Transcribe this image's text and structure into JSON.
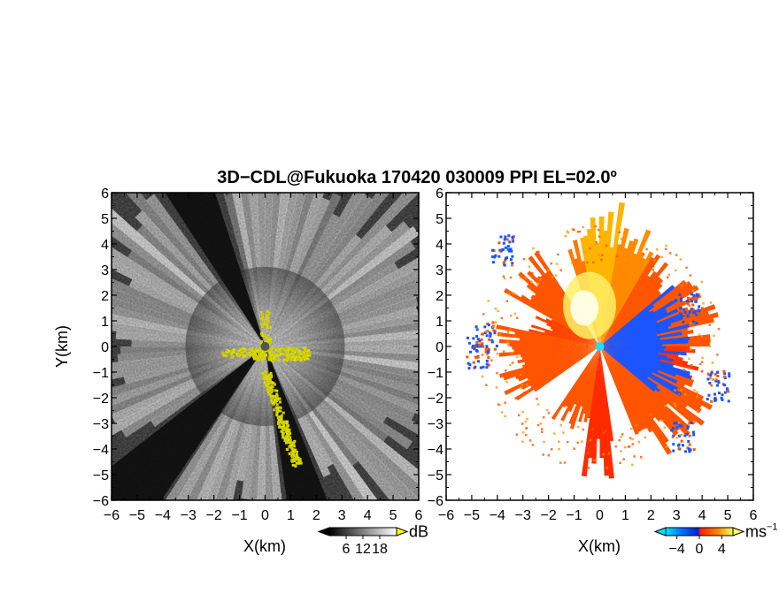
{
  "title": "3D−CDL@Fukuoka 170420 030009 PPI EL=02.0º",
  "chart_data": [
    {
      "type": "heatmap",
      "name": "PPI reflectivity / SNR",
      "xlabel": "X(km)",
      "ylabel": "Y(km)",
      "xlim": [
        -6,
        6
      ],
      "ylim": [
        -6,
        6
      ],
      "x_ticks": [
        "−6",
        "−5",
        "−4",
        "−3",
        "−2",
        "−1",
        "0",
        "1",
        "2",
        "3",
        "4",
        "5",
        "6"
      ],
      "y_ticks": [
        "6",
        "5",
        "4",
        "3",
        "2",
        "1",
        "0",
        "−1",
        "−2",
        "−3",
        "−4",
        "−5",
        "−6"
      ],
      "colorbar": {
        "unit": "dB",
        "ticks": [
          "6",
          "12",
          "18"
        ],
        "range": [
          0,
          24
        ],
        "colors": [
          "#000000",
          "#ffffff"
        ],
        "over_color": "#ffff00"
      },
      "radar_center": [
        0,
        0
      ],
      "center_marker_color": "#555555",
      "blocked_sectors_deg": [
        [
          108,
          123
        ],
        [
          218,
          236
        ],
        [
          278,
          292
        ]
      ],
      "yellow_feature_color": "#ffff00",
      "grid": false
    },
    {
      "type": "heatmap",
      "name": "PPI Doppler velocity",
      "xlabel": "X(km)",
      "ylabel": "",
      "xlim": [
        -6,
        6
      ],
      "ylim": [
        -6,
        6
      ],
      "x_ticks": [
        "−6",
        "−5",
        "−4",
        "−3",
        "−2",
        "−1",
        "0",
        "1",
        "2",
        "3",
        "4",
        "5",
        "6"
      ],
      "y_ticks": [
        "6",
        "5",
        "4",
        "3",
        "2",
        "1",
        "0",
        "−1",
        "−2",
        "−3",
        "−4",
        "−5",
        "−6"
      ],
      "colorbar": {
        "unit": "ms",
        "unit_exponent": "−1",
        "ticks": [
          "−4",
          "0",
          "4"
        ],
        "range": [
          -6,
          6
        ],
        "colors": [
          "#00e5ff",
          "#0077ff",
          "#0022cc",
          "#ff2200",
          "#ff8800",
          "#ffff60"
        ]
      },
      "radar_center": [
        0,
        0
      ],
      "center_marker_color": "#22ddee",
      "approaching_color": "#1a55ff",
      "receding_color": "#ff5500",
      "grid": false
    }
  ]
}
